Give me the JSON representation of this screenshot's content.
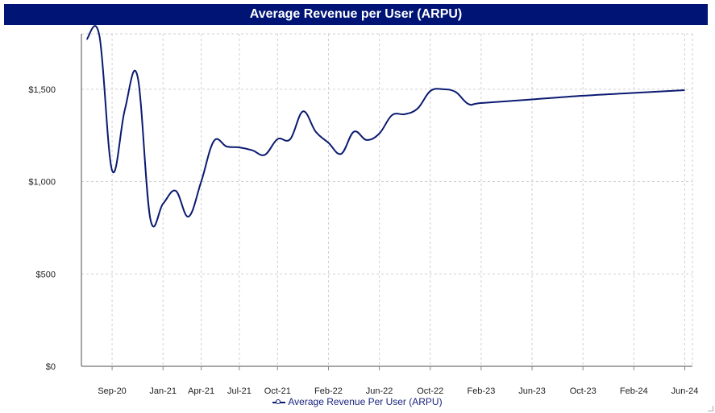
{
  "chart_data": {
    "type": "line",
    "title": "Average Revenue per User (ARPU)",
    "xlabel": "",
    "ylabel": "",
    "ylim": [
      0,
      1800
    ],
    "y_ticks": [
      0,
      500,
      1000,
      1500
    ],
    "y_tick_labels": [
      "$0",
      "$500",
      "$1,000",
      "$1,500"
    ],
    "x_ticks": [
      "2020-09",
      "2021-01",
      "2021-04",
      "2021-07",
      "2021-10",
      "2022-02",
      "2022-06",
      "2022-10",
      "2023-02",
      "2023-06",
      "2023-10",
      "2024-02",
      "2024-06"
    ],
    "x_tick_labels": [
      "Sep-20",
      "Jan-21",
      "Apr-21",
      "Jul-21",
      "Oct-21",
      "Feb-22",
      "Jun-22",
      "Oct-22",
      "Feb-23",
      "Jun-23",
      "Oct-23",
      "Feb-24",
      "Jun-24"
    ],
    "grid": true,
    "legend_position": "bottom",
    "series": [
      {
        "name": "Average Revenue Per User (ARPU)",
        "color": "#0a1a70",
        "x": [
          "2020-07",
          "2020-08",
          "2020-09",
          "2020-10",
          "2020-11",
          "2020-12",
          "2021-01",
          "2021-02",
          "2021-03",
          "2021-04",
          "2021-05",
          "2021-06",
          "2021-07",
          "2021-08",
          "2021-09",
          "2021-10",
          "2021-11",
          "2021-12",
          "2022-01",
          "2022-02",
          "2022-03",
          "2022-04",
          "2022-05",
          "2022-06",
          "2022-07",
          "2022-08",
          "2022-09",
          "2022-10",
          "2022-11",
          "2022-12",
          "2023-01",
          "2023-02",
          "2023-06",
          "2023-10",
          "2024-02",
          "2024-06"
        ],
        "values": [
          1770,
          1790,
          1060,
          1390,
          1570,
          800,
          880,
          950,
          810,
          1000,
          1220,
          1190,
          1185,
          1170,
          1145,
          1230,
          1230,
          1380,
          1270,
          1210,
          1150,
          1270,
          1225,
          1260,
          1360,
          1365,
          1395,
          1490,
          1500,
          1485,
          1420,
          1425,
          1445,
          1465,
          1480,
          1495
        ]
      }
    ]
  },
  "legend": {
    "label": "Average Revenue Per User (ARPU)"
  }
}
